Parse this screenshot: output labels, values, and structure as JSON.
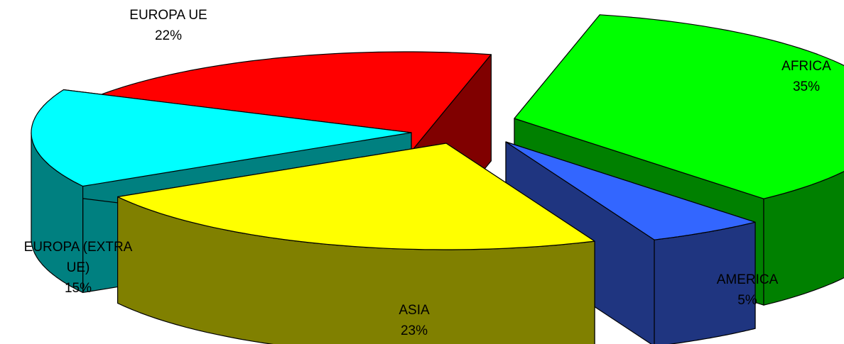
{
  "chart_data": {
    "type": "pie",
    "style": "3d-exploded",
    "slices": [
      {
        "name": "AFRICA",
        "label_lines": [
          "AFRICA"
        ],
        "value": 35,
        "value_label": "35%",
        "color": "#00ff00",
        "side_color": "#008000"
      },
      {
        "name": "AMERICA",
        "label_lines": [
          "AMERICA"
        ],
        "value": 5,
        "value_label": "5%",
        "color": "#3366ff",
        "side_color": "#1f3580"
      },
      {
        "name": "ASIA",
        "label_lines": [
          "ASIA"
        ],
        "value": 23,
        "value_label": "23%",
        "color": "#ffff00",
        "side_color": "#808000"
      },
      {
        "name": "EUROPA (EXTRA UE)",
        "label_lines": [
          "EUROPA (EXTRA",
          "UE)"
        ],
        "value": 15,
        "value_label": "15%",
        "color": "#00ffff",
        "side_color": "#008080"
      },
      {
        "name": "EUROPA UE",
        "label_lines": [
          "EUROPA UE"
        ],
        "value": 22,
        "value_label": "22%",
        "color": "#ff0000",
        "side_color": "#800000"
      }
    ]
  }
}
